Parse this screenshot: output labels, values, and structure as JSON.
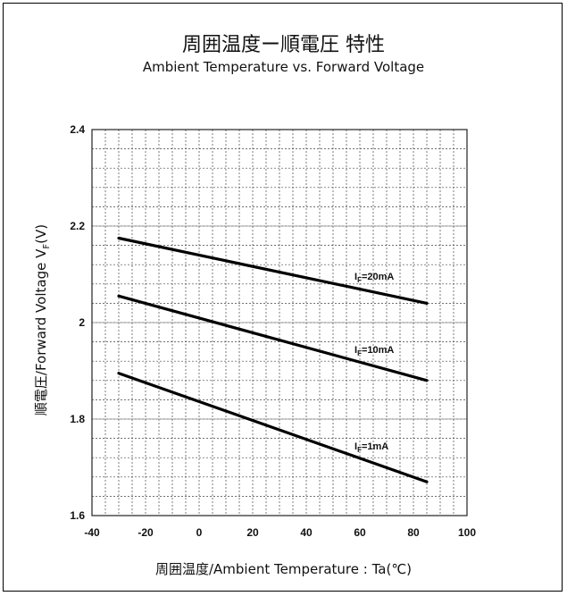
{
  "chart_data": {
    "type": "line",
    "title": "周囲温度ー順電圧 特性",
    "subtitle": "Ambient Temperature vs. Forward Voltage",
    "xlabel": "周囲温度/Ambient Temperature : Ta(℃)",
    "ylabel_main": "順電圧/Forward Voltage V",
    "ylabel_sub": "F",
    "ylabel_unit": "(V)",
    "xlim": [
      -40,
      100
    ],
    "ylim": [
      1.6,
      2.4
    ],
    "x_ticks": [
      -40,
      -20,
      0,
      20,
      40,
      60,
      80,
      100
    ],
    "y_ticks": [
      1.6,
      1.8,
      2,
      2.2,
      2.4
    ],
    "y_tick_labels": [
      "1.6",
      "1.8",
      "2",
      "2.2",
      "2.4"
    ],
    "grid": true,
    "series": [
      {
        "name_prefix": "I",
        "name_sub": "F",
        "name_suffix": "=20mA",
        "x": [
          -30,
          85
        ],
        "y": [
          2.175,
          2.04
        ]
      },
      {
        "name_prefix": "I",
        "name_sub": "F",
        "name_suffix": "=10mA",
        "x": [
          -30,
          85
        ],
        "y": [
          2.055,
          1.88
        ]
      },
      {
        "name_prefix": "I",
        "name_sub": "F",
        "name_suffix": "=1mA",
        "x": [
          -30,
          85
        ],
        "y": [
          1.895,
          1.67
        ]
      }
    ]
  }
}
